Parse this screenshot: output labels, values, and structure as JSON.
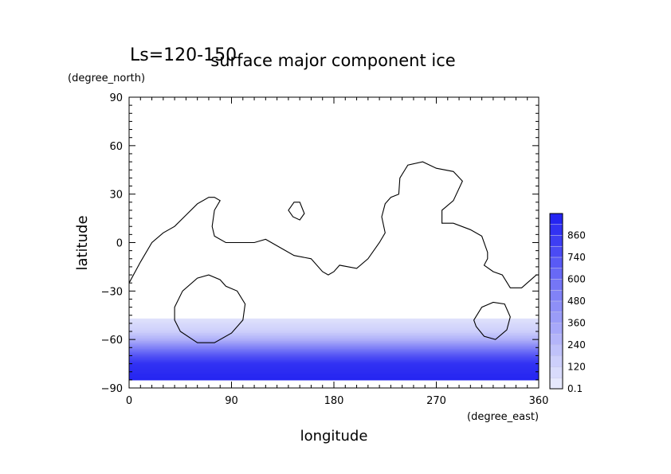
{
  "chart_data": {
    "type": "heatmap",
    "title": "surface major component ice",
    "subtitle": "Ls=120-150",
    "xlabel": "longitude",
    "ylabel": "latitude",
    "xunit": "(degree_east)",
    "yunit": "(degree_north)",
    "xlim": [
      0,
      360
    ],
    "ylim": [
      -90,
      90
    ],
    "x_ticks": [
      "0",
      "90",
      "180",
      "270",
      "360"
    ],
    "y_ticks": [
      "90",
      "60",
      "30",
      "0",
      "−30",
      "−60",
      "−90"
    ],
    "x_tick_values": [
      0,
      90,
      180,
      270,
      360
    ],
    "y_tick_values": [
      90,
      60,
      30,
      0,
      -30,
      -60,
      -90
    ],
    "colorbar": {
      "labels": [
        "0.1",
        "120",
        "240",
        "360",
        "480",
        "600",
        "740",
        "860"
      ],
      "levels": [
        0.1,
        60,
        120,
        180,
        240,
        300,
        360,
        420,
        480,
        540,
        600,
        670,
        740,
        800,
        860,
        920
      ],
      "color_low": "#e6e8fc",
      "color_high": "#2525f2"
    },
    "ice_field": {
      "edge_lat": -47,
      "pole_lat": -85,
      "min_value": 0.1,
      "max_value": 920,
      "values_at_lat": [
        {
          "lat": -47,
          "value": 30
        },
        {
          "lat": -55,
          "value": 120
        },
        {
          "lat": -60,
          "value": 260
        },
        {
          "lat": -65,
          "value": 480
        },
        {
          "lat": -70,
          "value": 700
        },
        {
          "lat": -75,
          "value": 860
        },
        {
          "lat": -85,
          "value": 920
        }
      ]
    },
    "contours": [
      {
        "points": [
          [
            0,
            -25
          ],
          [
            10,
            -12
          ],
          [
            20,
            0
          ],
          [
            30,
            6
          ],
          [
            40,
            10
          ],
          [
            50,
            17
          ],
          [
            60,
            24
          ],
          [
            70,
            28
          ],
          [
            75,
            28
          ],
          [
            80,
            26
          ],
          [
            75,
            20
          ],
          [
            73,
            10
          ],
          [
            75,
            4
          ],
          [
            85,
            0
          ],
          [
            110,
            0
          ],
          [
            120,
            2
          ],
          [
            135,
            -4
          ],
          [
            145,
            -8
          ],
          [
            160,
            -10
          ],
          [
            170,
            -18
          ],
          [
            175,
            -20
          ],
          [
            180,
            -18
          ],
          [
            185,
            -14
          ],
          [
            200,
            -16
          ],
          [
            210,
            -10
          ],
          [
            220,
            0
          ],
          [
            225,
            6
          ],
          [
            222,
            16
          ],
          [
            225,
            24
          ],
          [
            230,
            28
          ],
          [
            237,
            30
          ],
          [
            238,
            40
          ],
          [
            245,
            48
          ],
          [
            258,
            50
          ],
          [
            270,
            46
          ],
          [
            285,
            44
          ],
          [
            293,
            38
          ],
          [
            285,
            26
          ],
          [
            275,
            20
          ],
          [
            275,
            12
          ],
          [
            285,
            12
          ],
          [
            300,
            8
          ],
          [
            310,
            4
          ],
          [
            313,
            -2
          ],
          [
            315,
            -6
          ],
          [
            315,
            -10
          ],
          [
            312,
            -14
          ],
          [
            320,
            -18
          ],
          [
            328,
            -20
          ],
          [
            335,
            -28
          ],
          [
            345,
            -28
          ],
          [
            358,
            -20
          ],
          [
            360,
            -20
          ]
        ],
        "closed": false
      },
      {
        "points": [
          [
            140,
            20
          ],
          [
            145,
            25
          ],
          [
            150,
            25
          ],
          [
            154,
            18
          ],
          [
            150,
            14
          ],
          [
            144,
            16
          ]
        ],
        "closed": true
      },
      {
        "points": [
          [
            40,
            -40
          ],
          [
            47,
            -30
          ],
          [
            60,
            -22
          ],
          [
            70,
            -20
          ],
          [
            80,
            -23
          ],
          [
            85,
            -27
          ],
          [
            95,
            -30
          ],
          [
            102,
            -38
          ],
          [
            100,
            -48
          ],
          [
            90,
            -56
          ],
          [
            75,
            -62
          ],
          [
            60,
            -62
          ],
          [
            45,
            -55
          ],
          [
            40,
            -48
          ]
        ],
        "closed": true
      },
      {
        "points": [
          [
            303,
            -48
          ],
          [
            310,
            -40
          ],
          [
            320,
            -37
          ],
          [
            330,
            -38
          ],
          [
            335,
            -46
          ],
          [
            332,
            -54
          ],
          [
            322,
            -60
          ],
          [
            312,
            -58
          ],
          [
            305,
            -52
          ]
        ],
        "closed": true
      }
    ]
  }
}
